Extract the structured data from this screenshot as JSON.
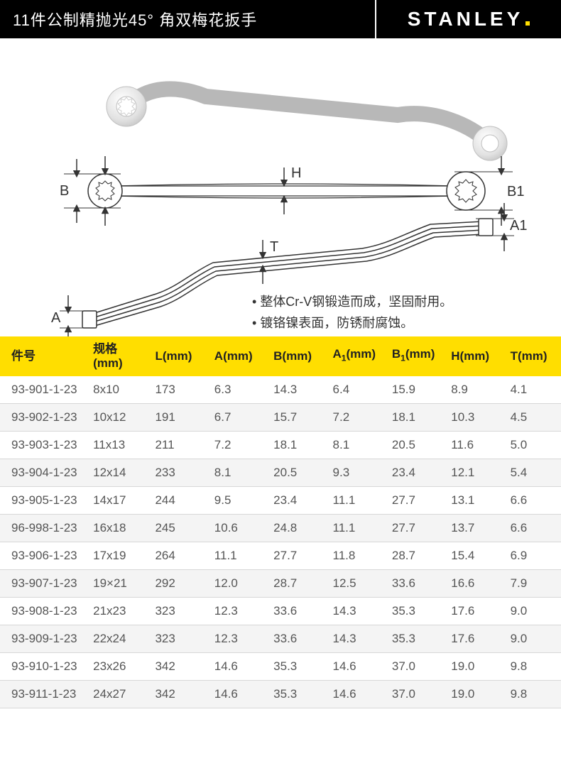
{
  "header": {
    "title": "11件公制精抛光45° 角双梅花扳手",
    "brand": "STANLEY"
  },
  "diagram": {
    "labels": {
      "B": "B",
      "B1": "B1",
      "H": "H",
      "A": "A",
      "A1": "A1",
      "T": "T"
    },
    "colors": {
      "stroke": "#333333",
      "fill": "#ffffff",
      "shade": "#e7e7e7"
    }
  },
  "bullets": [
    "整体Cr-V钢锻造而成，坚固耐用。",
    "镀铬镍表面，防锈耐腐蚀。"
  ],
  "table": {
    "header_bg": "#ffde00",
    "columns": [
      {
        "key": "part",
        "label_html": "件号"
      },
      {
        "key": "spec",
        "label_html": "规格<br>(mm)"
      },
      {
        "key": "L",
        "label_html": "L(mm)"
      },
      {
        "key": "A",
        "label_html": "A(mm)"
      },
      {
        "key": "B",
        "label_html": "B(mm)"
      },
      {
        "key": "A1",
        "label_html": "A<span class=\"sub\">1</span>(mm)"
      },
      {
        "key": "B1",
        "label_html": "B<span class=\"sub\">1</span>(mm)"
      },
      {
        "key": "H",
        "label_html": "H(mm)"
      },
      {
        "key": "T",
        "label_html": "T(mm)"
      }
    ],
    "rows": [
      [
        "93-901-1-23",
        "8x10",
        "173",
        "6.3",
        "14.3",
        "6.4",
        "15.9",
        "8.9",
        "4.1"
      ],
      [
        "93-902-1-23",
        "10x12",
        "191",
        "6.7",
        "15.7",
        "7.2",
        "18.1",
        "10.3",
        "4.5"
      ],
      [
        "93-903-1-23",
        "11x13",
        "211",
        "7.2",
        "18.1",
        "8.1",
        "20.5",
        "11.6",
        "5.0"
      ],
      [
        "93-904-1-23",
        "12x14",
        "233",
        "8.1",
        "20.5",
        "9.3",
        "23.4",
        "12.1",
        "5.4"
      ],
      [
        "93-905-1-23",
        "14x17",
        "244",
        "9.5",
        "23.4",
        "11.1",
        "27.7",
        "13.1",
        "6.6"
      ],
      [
        "96-998-1-23",
        "16x18",
        "245",
        "10.6",
        "24.8",
        "11.1",
        "27.7",
        "13.7",
        "6.6"
      ],
      [
        "93-906-1-23",
        "17x19",
        "264",
        "11.1",
        "27.7",
        "11.8",
        "28.7",
        "15.4",
        "6.9"
      ],
      [
        "93-907-1-23",
        "19×21",
        "292",
        "12.0",
        "28.7",
        "12.5",
        "33.6",
        "16.6",
        "7.9"
      ],
      [
        "93-908-1-23",
        "21x23",
        "323",
        "12.3",
        "33.6",
        "14.3",
        "35.3",
        "17.6",
        "9.0"
      ],
      [
        "93-909-1-23",
        "22x24",
        "323",
        "12.3",
        "33.6",
        "14.3",
        "35.3",
        "17.6",
        "9.0"
      ],
      [
        "93-910-1-23",
        "23x26",
        "342",
        "14.6",
        "35.3",
        "14.6",
        "37.0",
        "19.0",
        "9.8"
      ],
      [
        "93-911-1-23",
        "24x27",
        "342",
        "14.6",
        "35.3",
        "14.6",
        "37.0",
        "19.0",
        "9.8"
      ]
    ],
    "alt_row_bg": "#f4f4f4",
    "border_color": "#d7d7d7",
    "text_color": "#555555"
  }
}
